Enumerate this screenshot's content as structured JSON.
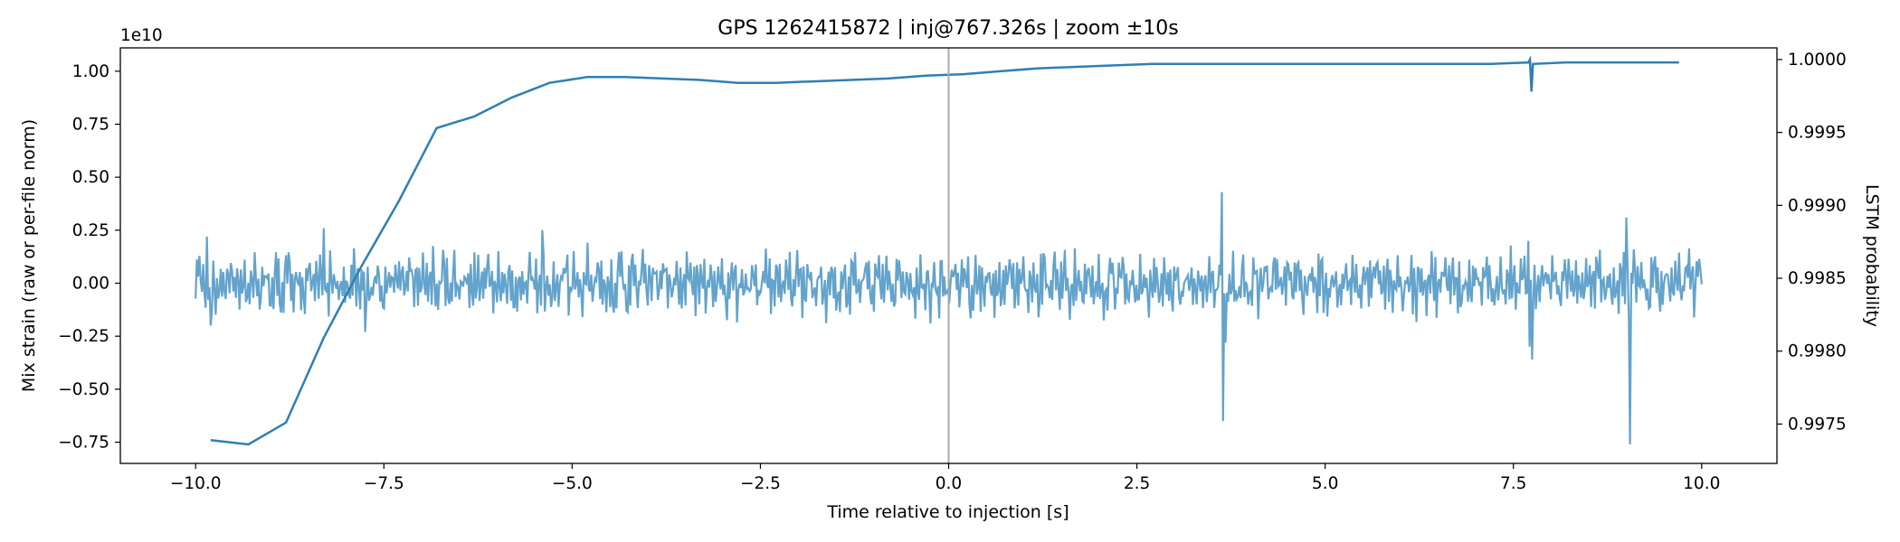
{
  "chart_data": {
    "type": "line",
    "title": "GPS 1262415872 | inj@767.326s | zoom ±10s",
    "xlabel": "Time relative to injection [s]",
    "ylabel_left": "Mix strain (raw or per-file norm)",
    "ylabel_right": "LSTM probability",
    "left_axis_offset": "1e10",
    "xlim": [
      -11,
      11
    ],
    "ylim_left": [
      -0.85,
      1.11
    ],
    "ylim_right": [
      0.99723,
      1.00008
    ],
    "x_ticks": [
      -10,
      -7.5,
      -5,
      -2.5,
      0,
      2.5,
      5,
      7.5,
      10
    ],
    "x_tick_labels": [
      "−10.0",
      "−7.5",
      "−5.0",
      "−2.5",
      "0.0",
      "2.5",
      "5.0",
      "7.5",
      "10.0"
    ],
    "y_left_ticks": [
      -0.75,
      -0.5,
      -0.25,
      0,
      0.25,
      0.5,
      0.75,
      1.0
    ],
    "y_left_tick_labels": [
      "−0.75",
      "−0.50",
      "−0.25",
      "0.00",
      "0.25",
      "0.50",
      "0.75",
      "1.00"
    ],
    "y_right_ticks": [
      0.9975,
      0.998,
      0.9985,
      0.999,
      0.9995,
      1.0
    ],
    "y_right_tick_labels": [
      "0.9975",
      "0.9980",
      "0.9985",
      "0.9990",
      "0.9995",
      "1.0000"
    ],
    "injection_marker_x": 0,
    "series": [
      {
        "name": "Mix strain",
        "axis": "left",
        "color": "#5b9ec9",
        "x_start": -10,
        "x_end": 10,
        "n_points": 1200,
        "noise_amplitude": 0.13,
        "spikes": [
          {
            "x": -9.85,
            "y": 0.22
          },
          {
            "x": -9.8,
            "y": -0.2
          },
          {
            "x": -8.3,
            "y": 0.26
          },
          {
            "x": -7.75,
            "y": -0.23
          },
          {
            "x": -5.4,
            "y": 0.25
          },
          {
            "x": -0.25,
            "y": -0.19
          },
          {
            "x": 3.62,
            "y": 0.43
          },
          {
            "x": 3.64,
            "y": -0.65
          },
          {
            "x": 3.68,
            "y": -0.28
          },
          {
            "x": 7.7,
            "y": 0.2
          },
          {
            "x": 7.72,
            "y": -0.3
          },
          {
            "x": 7.75,
            "y": -0.36
          },
          {
            "x": 9.0,
            "y": 0.31
          },
          {
            "x": 9.05,
            "y": -0.76
          },
          {
            "x": 9.1,
            "y": 0.16
          }
        ]
      },
      {
        "name": "LSTM probability",
        "axis": "right",
        "color": "#2f7fb5",
        "points": [
          [
            -9.8,
            0.99739
          ],
          [
            -9.3,
            0.99736
          ],
          [
            -8.8,
            0.99751
          ],
          [
            -8.3,
            0.99809
          ],
          [
            -7.8,
            0.99858
          ],
          [
            -7.3,
            0.99903
          ],
          [
            -6.8,
            0.99953
          ],
          [
            -6.3,
            0.99961
          ],
          [
            -5.8,
            0.99974
          ],
          [
            -5.3,
            0.99984
          ],
          [
            -4.8,
            0.99988
          ],
          [
            -4.3,
            0.99988
          ],
          [
            -3.8,
            0.99987
          ],
          [
            -3.3,
            0.99986
          ],
          [
            -2.8,
            0.99984
          ],
          [
            -2.3,
            0.99984
          ],
          [
            -1.8,
            0.99985
          ],
          [
            -1.3,
            0.99986
          ],
          [
            -0.8,
            0.99987
          ],
          [
            -0.3,
            0.99989
          ],
          [
            0.2,
            0.9999
          ],
          [
            0.7,
            0.99992
          ],
          [
            1.2,
            0.99994
          ],
          [
            1.7,
            0.99995
          ],
          [
            2.2,
            0.99996
          ],
          [
            2.7,
            0.99997
          ],
          [
            3.2,
            0.99997
          ],
          [
            3.7,
            0.99997
          ],
          [
            4.2,
            0.99997
          ],
          [
            4.7,
            0.99997
          ],
          [
            5.2,
            0.99997
          ],
          [
            5.7,
            0.99997
          ],
          [
            6.2,
            0.99997
          ],
          [
            6.7,
            0.99997
          ],
          [
            7.2,
            0.99997
          ],
          [
            7.7,
            0.99998
          ],
          [
            7.72,
            1.0
          ],
          [
            7.74,
            0.99978
          ],
          [
            7.76,
            0.99997
          ],
          [
            8.2,
            0.99998
          ],
          [
            8.7,
            0.99998
          ],
          [
            9.2,
            0.99998
          ],
          [
            9.7,
            0.99998
          ]
        ]
      }
    ]
  }
}
